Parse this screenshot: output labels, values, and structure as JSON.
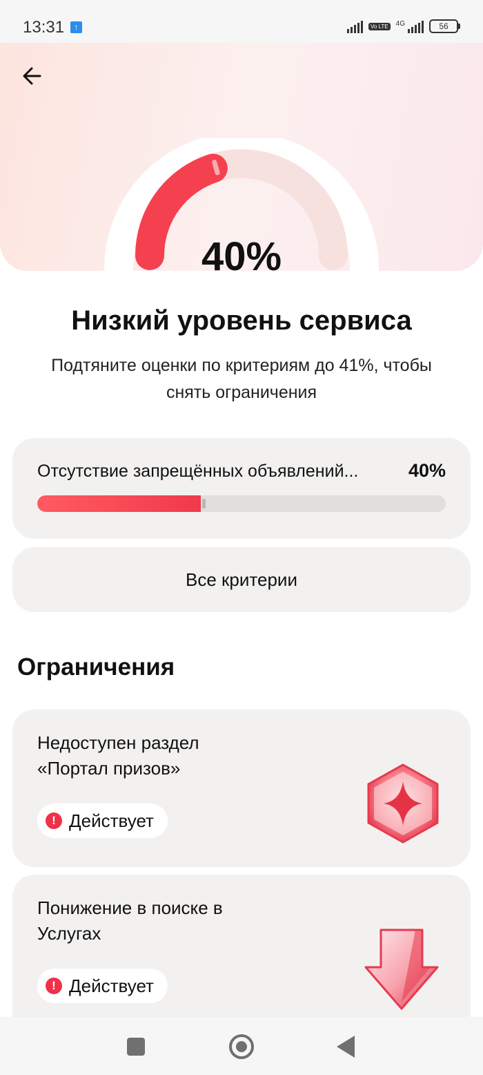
{
  "status_bar": {
    "time": "13:31",
    "upload_icon": "upload-arrow-icon",
    "volte": "Vo LTE",
    "network": "4G",
    "battery": "56"
  },
  "header": {
    "back_icon": "arrow-left-icon"
  },
  "gauge": {
    "value_label": "40%",
    "value_fraction": 0.4,
    "target_fraction": 0.41,
    "fill_color": "#f5414f"
  },
  "summary": {
    "title": "Низкий уровень сервиса",
    "subtitle": "Подтяните оценки по критериям до 41%, чтобы снять ограничения"
  },
  "criterion": {
    "name": "Отсутствие запрещённых объявлений...",
    "percent_label": "40%",
    "value_fraction": 0.4,
    "target_fraction": 0.41
  },
  "all_criteria_button": "Все критерии",
  "restrictions": {
    "title": "Ограничения",
    "items": [
      {
        "title": "Недоступен раздел «Портал призов»",
        "status": "Действует",
        "icon": "prize-hexagon-icon"
      },
      {
        "title": "Понижение в поиске в Услугах",
        "status": "Действует",
        "icon": "arrow-down-icon"
      }
    ]
  },
  "nav_bar": {
    "icons": [
      "recent-apps-icon",
      "home-icon",
      "back-triangle-icon"
    ]
  }
}
